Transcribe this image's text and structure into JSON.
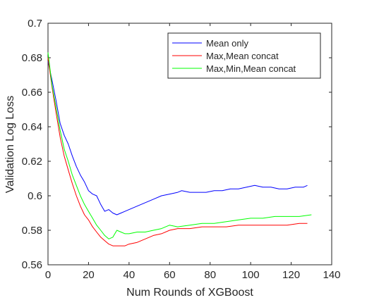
{
  "chart_data": {
    "type": "line",
    "xlabel": "Num Rounds of XGBoost",
    "ylabel": "Validation Log Loss",
    "xlim": [
      0,
      140
    ],
    "ylim": [
      0.56,
      0.7
    ],
    "xticks": [
      0,
      20,
      40,
      60,
      80,
      100,
      120,
      140
    ],
    "yticks": [
      0.56,
      0.58,
      0.6,
      0.62,
      0.64,
      0.66,
      0.68,
      0.7
    ],
    "xtick_labels": [
      "0",
      "20",
      "40",
      "60",
      "80",
      "100",
      "120",
      "140"
    ],
    "ytick_labels": [
      "0.56",
      "0.58",
      "0.6",
      "0.62",
      "0.64",
      "0.66",
      "0.68",
      "0.7"
    ],
    "grid": false,
    "legend_position": "top-right",
    "series": [
      {
        "name": "Mean only",
        "color": "#0000ff",
        "points": [
          [
            0,
            0.678
          ],
          [
            2,
            0.667
          ],
          [
            4,
            0.655
          ],
          [
            6,
            0.642
          ],
          [
            8,
            0.635
          ],
          [
            10,
            0.63
          ],
          [
            12,
            0.623
          ],
          [
            14,
            0.617
          ],
          [
            16,
            0.612
          ],
          [
            18,
            0.608
          ],
          [
            20,
            0.603
          ],
          [
            22,
            0.601
          ],
          [
            24,
            0.6
          ],
          [
            26,
            0.595
          ],
          [
            28,
            0.591
          ],
          [
            30,
            0.592
          ],
          [
            32,
            0.59
          ],
          [
            34,
            0.589
          ],
          [
            36,
            0.59
          ],
          [
            38,
            0.591
          ],
          [
            40,
            0.592
          ],
          [
            44,
            0.594
          ],
          [
            48,
            0.596
          ],
          [
            52,
            0.598
          ],
          [
            56,
            0.6
          ],
          [
            60,
            0.601
          ],
          [
            64,
            0.602
          ],
          [
            66,
            0.603
          ],
          [
            70,
            0.602
          ],
          [
            74,
            0.602
          ],
          [
            78,
            0.602
          ],
          [
            82,
            0.603
          ],
          [
            86,
            0.603
          ],
          [
            90,
            0.604
          ],
          [
            94,
            0.604
          ],
          [
            98,
            0.605
          ],
          [
            102,
            0.606
          ],
          [
            106,
            0.605
          ],
          [
            110,
            0.605
          ],
          [
            114,
            0.604
          ],
          [
            118,
            0.604
          ],
          [
            122,
            0.605
          ],
          [
            126,
            0.605
          ],
          [
            128,
            0.606
          ]
        ]
      },
      {
        "name": "Max,Mean concat",
        "color": "#ff0000",
        "points": [
          [
            0,
            0.68
          ],
          [
            2,
            0.663
          ],
          [
            4,
            0.648
          ],
          [
            6,
            0.634
          ],
          [
            8,
            0.623
          ],
          [
            10,
            0.615
          ],
          [
            12,
            0.607
          ],
          [
            14,
            0.6
          ],
          [
            16,
            0.594
          ],
          [
            18,
            0.589
          ],
          [
            20,
            0.586
          ],
          [
            22,
            0.582
          ],
          [
            24,
            0.579
          ],
          [
            26,
            0.576
          ],
          [
            28,
            0.574
          ],
          [
            30,
            0.572
          ],
          [
            32,
            0.571
          ],
          [
            34,
            0.571
          ],
          [
            36,
            0.571
          ],
          [
            38,
            0.571
          ],
          [
            40,
            0.572
          ],
          [
            44,
            0.573
          ],
          [
            48,
            0.575
          ],
          [
            52,
            0.577
          ],
          [
            56,
            0.578
          ],
          [
            60,
            0.58
          ],
          [
            64,
            0.581
          ],
          [
            70,
            0.581
          ],
          [
            76,
            0.582
          ],
          [
            82,
            0.582
          ],
          [
            88,
            0.582
          ],
          [
            94,
            0.583
          ],
          [
            100,
            0.583
          ],
          [
            106,
            0.583
          ],
          [
            112,
            0.583
          ],
          [
            118,
            0.583
          ],
          [
            124,
            0.584
          ],
          [
            128,
            0.584
          ]
        ]
      },
      {
        "name": "Max,Min,Mean concat",
        "color": "#00ff00",
        "points": [
          [
            0,
            0.683
          ],
          [
            2,
            0.664
          ],
          [
            4,
            0.651
          ],
          [
            6,
            0.638
          ],
          [
            8,
            0.627
          ],
          [
            10,
            0.62
          ],
          [
            12,
            0.612
          ],
          [
            14,
            0.606
          ],
          [
            16,
            0.6
          ],
          [
            18,
            0.595
          ],
          [
            20,
            0.591
          ],
          [
            22,
            0.587
          ],
          [
            24,
            0.583
          ],
          [
            26,
            0.58
          ],
          [
            28,
            0.577
          ],
          [
            30,
            0.575
          ],
          [
            32,
            0.576
          ],
          [
            34,
            0.58
          ],
          [
            36,
            0.579
          ],
          [
            38,
            0.578
          ],
          [
            40,
            0.578
          ],
          [
            44,
            0.579
          ],
          [
            48,
            0.579
          ],
          [
            52,
            0.58
          ],
          [
            56,
            0.581
          ],
          [
            60,
            0.583
          ],
          [
            64,
            0.582
          ],
          [
            70,
            0.583
          ],
          [
            76,
            0.584
          ],
          [
            82,
            0.584
          ],
          [
            88,
            0.585
          ],
          [
            94,
            0.586
          ],
          [
            100,
            0.587
          ],
          [
            106,
            0.587
          ],
          [
            112,
            0.588
          ],
          [
            118,
            0.588
          ],
          [
            124,
            0.588
          ],
          [
            130,
            0.589
          ]
        ]
      }
    ]
  }
}
